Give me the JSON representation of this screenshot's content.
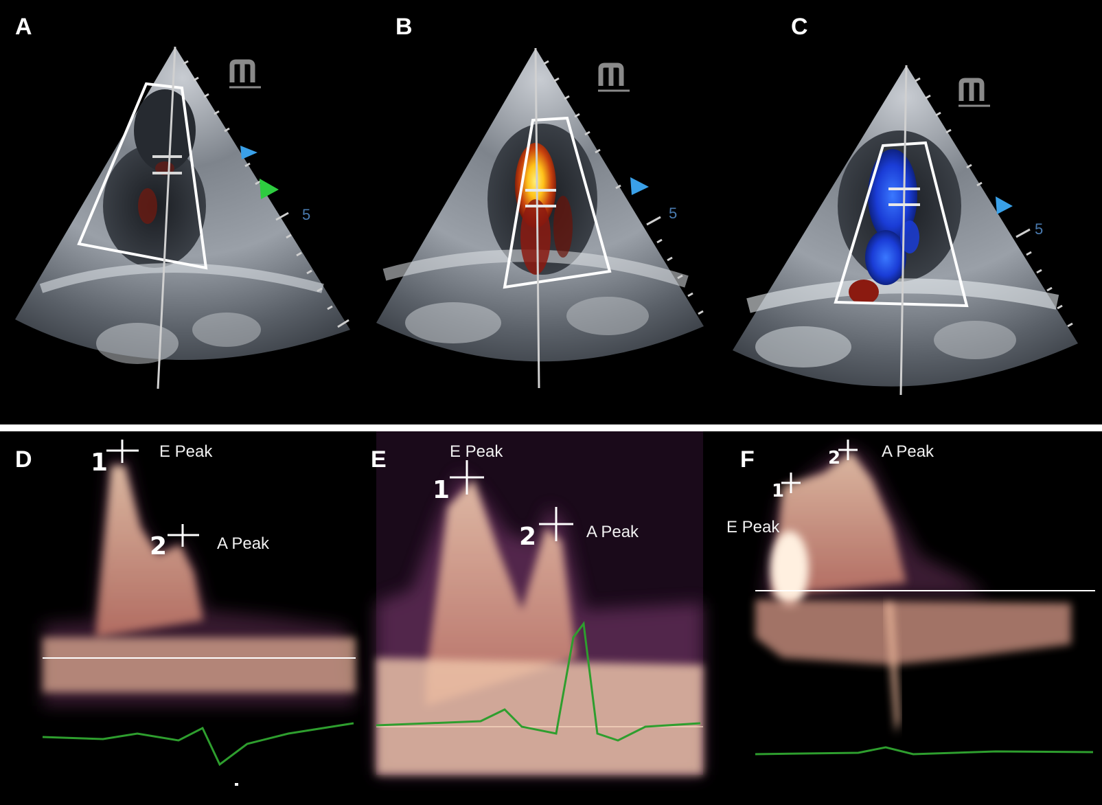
{
  "figure": {
    "panels": {
      "A": {
        "letter": "A",
        "logo": "m",
        "depth_marker": "5",
        "color_mode": "red-low-flow"
      },
      "B": {
        "letter": "B",
        "logo": "m",
        "depth_marker": "5",
        "color_mode": "red-yellow-flow"
      },
      "C": {
        "letter": "C",
        "logo": "m",
        "depth_marker": "5",
        "color_mode": "blue-flow"
      },
      "D": {
        "letter": "D",
        "peak_e_label": "E Peak",
        "peak_a_label": "A Peak",
        "marker_1": "1",
        "marker_2": "2"
      },
      "E": {
        "letter": "E",
        "peak_e_label": "E Peak",
        "peak_a_label": "A Peak",
        "marker_1": "1",
        "marker_2": "2"
      },
      "F": {
        "letter": "F",
        "peak_e_label": "E Peak",
        "peak_a_label": "A Peak",
        "marker_1": "1",
        "marker_2": "2"
      }
    },
    "colors": {
      "background": "#000000",
      "doppler_glow": "#f5c9a8",
      "ecg_trace": "#2e9e2e",
      "flow_red": "#8b1a10",
      "flow_yellow": "#ffd21a",
      "flow_blue": "#1a3cd6",
      "arrow_blue": "#3aa0e8",
      "arrow_green": "#2ecc40"
    }
  }
}
